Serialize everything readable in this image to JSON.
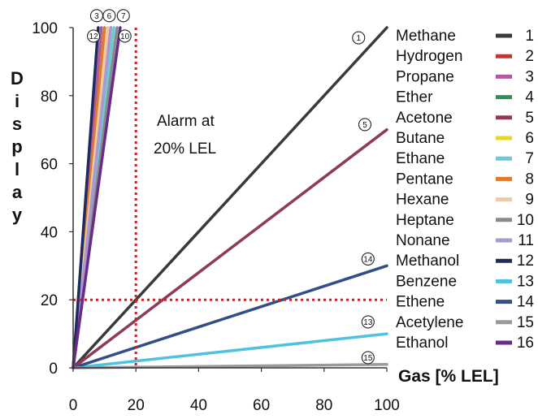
{
  "chart_data": {
    "type": "line",
    "xlabel": "Gas [% LEL]",
    "ylabel": "Display",
    "xlim": [
      0,
      100
    ],
    "ylim": [
      0,
      100
    ],
    "x_ticks": [
      0,
      20,
      40,
      60,
      80,
      100
    ],
    "y_ticks": [
      0,
      20,
      40,
      60,
      80,
      100
    ],
    "grid": false,
    "legend_placement": "right",
    "alarm": {
      "x": 20,
      "y": 20,
      "label_line1": "Alarm at",
      "label_line2": "20% LEL",
      "color": "#c0282d"
    },
    "series": [
      {
        "name": "Methane",
        "number": "1",
        "color": "#3a3a3a",
        "x": [
          0,
          100
        ],
        "y": [
          0,
          100
        ]
      },
      {
        "name": "Hydrogen",
        "number": "2",
        "color": "#d42b2b",
        "x": [
          0,
          12
        ],
        "y": [
          0,
          100
        ]
      },
      {
        "name": "Propane",
        "number": "3",
        "color": "#b05aa6",
        "x": [
          0,
          9
        ],
        "y": [
          0,
          100
        ]
      },
      {
        "name": "Ether",
        "number": "4",
        "color": "#2e8f57",
        "x": [
          0,
          10
        ],
        "y": [
          0,
          100
        ]
      },
      {
        "name": "Acetone",
        "number": "5",
        "color": "#8e3a5c",
        "x": [
          0,
          100
        ],
        "y": [
          0,
          70
        ]
      },
      {
        "name": "Butane",
        "number": "6",
        "color": "#e8d51e",
        "x": [
          0,
          11
        ],
        "y": [
          0,
          100
        ]
      },
      {
        "name": "Ethane",
        "number": "7",
        "color": "#6cc9d8",
        "x": [
          0,
          13
        ],
        "y": [
          0,
          100
        ]
      },
      {
        "name": "Pentane",
        "number": "8",
        "color": "#e07a2c",
        "x": [
          0,
          10
        ],
        "y": [
          0,
          100
        ]
      },
      {
        "name": "Hexane",
        "number": "9",
        "color": "#f0c9a2",
        "x": [
          0,
          11
        ],
        "y": [
          0,
          100
        ]
      },
      {
        "name": "Heptane",
        "number": "10",
        "color": "#8a8a8a",
        "x": [
          0,
          14
        ],
        "y": [
          0,
          100
        ]
      },
      {
        "name": "Nonane",
        "number": "11",
        "color": "#a79ad0",
        "x": [
          0,
          12
        ],
        "y": [
          0,
          100
        ]
      },
      {
        "name": "Methanol",
        "number": "12",
        "color": "#1f2a5e",
        "x": [
          0,
          8
        ],
        "y": [
          0,
          100
        ]
      },
      {
        "name": "Benzene",
        "number": "13",
        "color": "#4ec3e0",
        "x": [
          0,
          100
        ],
        "y": [
          0,
          10
        ]
      },
      {
        "name": "Ethene",
        "number": "14",
        "color": "#2f4f86",
        "x": [
          0,
          100
        ],
        "y": [
          0,
          30
        ]
      },
      {
        "name": "Acetylene",
        "number": "15",
        "color": "#9a9a9a",
        "x": [
          0,
          100
        ],
        "y": [
          0,
          1
        ]
      },
      {
        "name": "Ethanol",
        "number": "16",
        "color": "#6a2a8a",
        "x": [
          0,
          15
        ],
        "y": [
          0,
          100
        ]
      }
    ],
    "curve_labels": [
      {
        "text": "1",
        "x": 91,
        "y": 97
      },
      {
        "text": "5",
        "x": 93,
        "y": 71.5
      },
      {
        "text": "14",
        "x": 94,
        "y": 32
      },
      {
        "text": "13",
        "x": 94,
        "y": 13.5
      },
      {
        "text": "15",
        "x": 94,
        "y": 3
      },
      {
        "text": "3",
        "x": 7.5,
        "y": 103.5
      },
      {
        "text": "6",
        "x": 11.5,
        "y": 103.5
      },
      {
        "text": "7",
        "x": 16,
        "y": 103.5
      },
      {
        "text": "12",
        "x": 6.5,
        "y": 97.5
      },
      {
        "text": "10",
        "x": 16.5,
        "y": 97.5
      }
    ]
  }
}
